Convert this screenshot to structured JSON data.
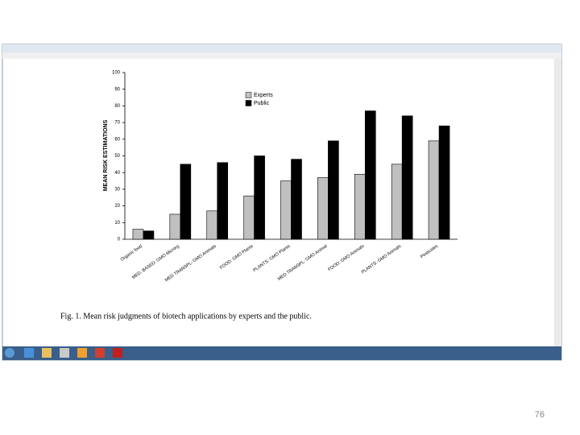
{
  "chart_data": {
    "type": "bar",
    "y_label": "MEAN RISK ESTIMATIONS",
    "categories": [
      "Organic food",
      "MED. BASED: GMO Microrg",
      "MED TRANSPL: GMO Animals",
      "FOOD: GMO Plants",
      "PLANTS: GMO Plants",
      "MED TRANSPL: GMO Animal",
      "FOOD: GMO Animals",
      "PLANTS: GMO Animals",
      "Pesticides"
    ],
    "series": [
      {
        "name": "Experts",
        "color": "#c0c0c0",
        "values": [
          6,
          15,
          17,
          26,
          35,
          37,
          39,
          45,
          59
        ]
      },
      {
        "name": "Public",
        "color": "#000000",
        "values": [
          5,
          45,
          46,
          50,
          48,
          59,
          77,
          74,
          68
        ]
      }
    ],
    "ylim": [
      0,
      100
    ],
    "yticks": [
      0,
      10,
      20,
      30,
      40,
      50,
      60,
      70,
      80,
      90,
      100
    ],
    "grid": false,
    "legend": "upper-left"
  },
  "caption": "Fig. 1. Mean risk judgments of biotech applications by experts and the public.",
  "page_number": "76"
}
